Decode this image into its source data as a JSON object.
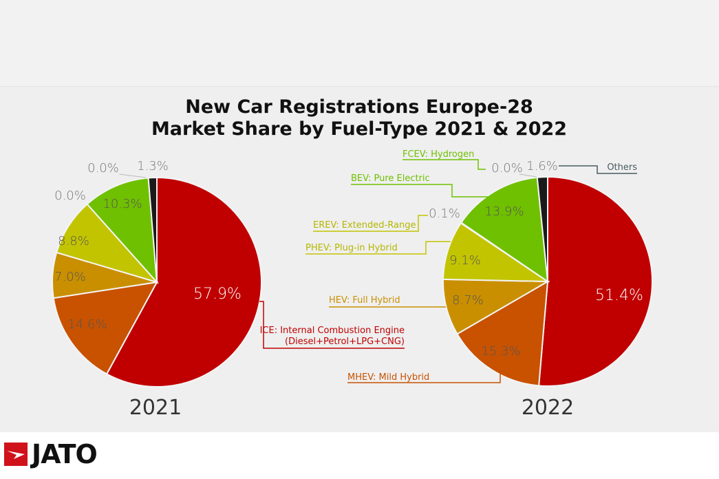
{
  "chart_data": {
    "type": "pie",
    "title": [
      "New Car Registrations Europe-28",
      "Market Share by Fuel-Type 2021 & 2022"
    ],
    "categories": [
      "ICE: Internal Combustion Engine (Diesel+Petrol+LPG+CNG)",
      "MHEV: Mild Hybrid",
      "HEV: Full Hybrid",
      "PHEV: Plug-in Hybrid",
      "EREV: Extended-Range",
      "BEV: Pure Electric",
      "FCEV: Hydrogen",
      "Others"
    ],
    "category_labels": {
      "ice_1": "ICE: Internal Combustion Engine",
      "ice_2": "(Diesel+Petrol+LPG+CNG)",
      "mhev": "MHEV: Mild Hybrid",
      "hev": "HEV: Full Hybrid",
      "phev": "PHEV: Plug-in Hybrid",
      "erev": "EREV: Extended-Range",
      "bev": "BEV: Pure Electric",
      "fcev": "FCEV: Hydrogen",
      "others": "Others"
    },
    "colors": [
      "#c00000",
      "#c85200",
      "#c98f00",
      "#c3c400",
      "#c3c400",
      "#6fc000",
      "#6fc000",
      "#1a1a1a"
    ],
    "series": [
      {
        "name": "2021",
        "values": [
          57.9,
          14.6,
          7.0,
          8.8,
          0.0,
          10.3,
          0.0,
          1.3
        ],
        "labels": [
          "57.9%",
          "14.6%",
          "7.0%",
          "8.8%",
          "0.0%",
          "10.3%",
          "0.0%",
          "1.3%"
        ]
      },
      {
        "name": "2022",
        "values": [
          51.4,
          15.3,
          8.7,
          9.1,
          0.1,
          13.9,
          0.0,
          1.6
        ],
        "labels": [
          "51.4%",
          "15.3%",
          "8.7%",
          "9.1%",
          "0.1%",
          "13.9%",
          "0.0%",
          "1.6%"
        ]
      }
    ]
  },
  "brand": {
    "logo": "JATO"
  }
}
